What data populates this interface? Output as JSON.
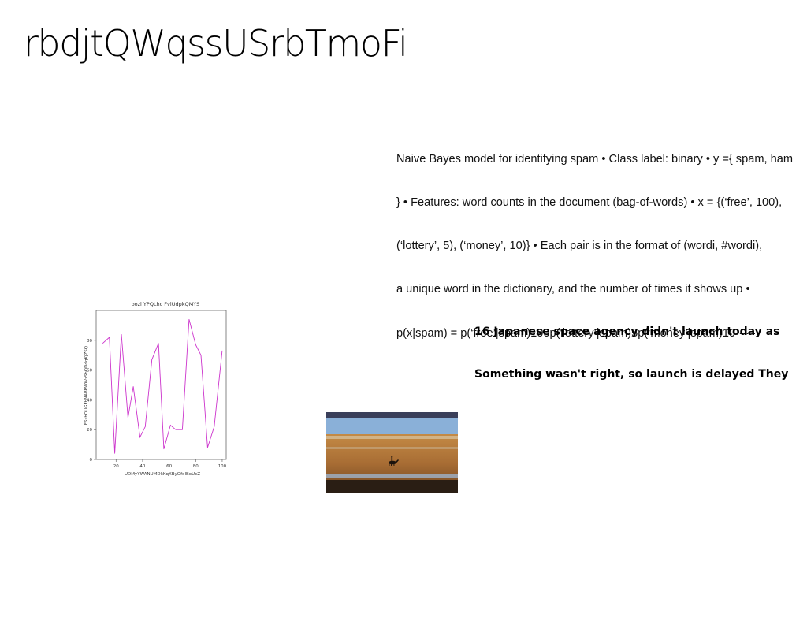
{
  "slide": {
    "title": "rbdjtQWqssUSrbTmoFi",
    "body_lines": [
      "Naive Bayes model for identifying spam • Class label: binary • y ={ spam, ham",
      "} • Features: word counts in the document (bag-of-words) • x = {(‘free’, 100),",
      "(‘lottery’, 5), (‘money’, 10)} • Each pair is in the format of (wordi, #wordi),",
      "a unique word in the dictionary, and the number of times it shows up •",
      "p(x|spam) = p(‘free’|spam)100p(‘lottery’|spam)5p(‘money’|spam)10 · · ·"
    ],
    "caption_lines": [
      "16 Japanese space agency didn't launch today as",
      "Something wasn't right, so launch is delayed They"
    ]
  },
  "chart_data": {
    "type": "line",
    "title": "oozl YPQLhc FvlUdpkQMYS",
    "xlabel": "UDMyYWANUMDkKqXByOfdlBoUcZ",
    "ylabel": "FSzhOUGFhNABPWWzShODdqKjZSQ",
    "xlim": [
      5,
      103
    ],
    "ylim": [
      0,
      100
    ],
    "xticks": [
      20,
      40,
      60,
      80,
      100
    ],
    "yticks": [
      0,
      20,
      40,
      60,
      80
    ],
    "color": "#cc33cc",
    "x": [
      10,
      15,
      19,
      24,
      29,
      33,
      38,
      42,
      47,
      52,
      56,
      61,
      65,
      70,
      75,
      80,
      84,
      89,
      94,
      100
    ],
    "y": [
      78,
      82,
      4,
      84,
      28,
      49,
      15,
      22,
      67,
      78,
      7,
      23,
      20,
      20,
      94,
      77,
      70,
      8,
      22,
      73
    ]
  },
  "photo": {
    "description_icon": "horse-rider-beach-photo",
    "colors": {
      "sky": "#3a3f5a",
      "sea": "#8ab0d8",
      "sand": "#b27a3a",
      "shadow": "#2a1e14"
    }
  }
}
